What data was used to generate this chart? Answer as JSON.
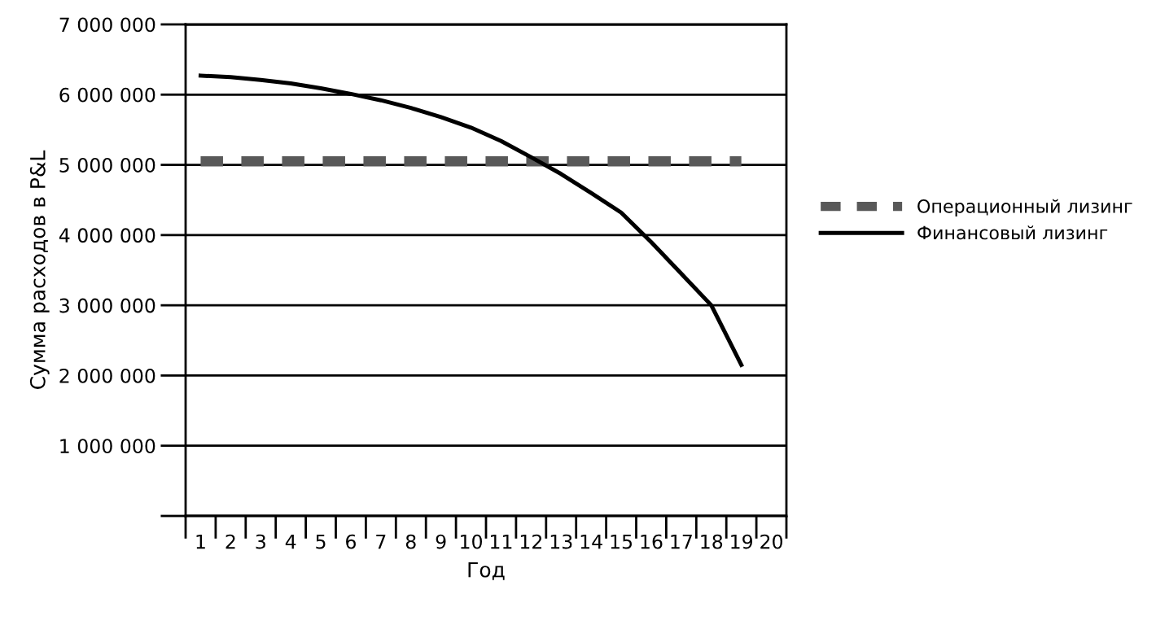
{
  "chart_data": {
    "type": "line",
    "xlabel": "Год",
    "ylabel": "Сумма расходов в P&L",
    "categories": [
      "1",
      "2",
      "3",
      "4",
      "5",
      "6",
      "7",
      "8",
      "9",
      "10",
      "11",
      "12",
      "13",
      "14",
      "15",
      "16",
      "17",
      "18",
      "19",
      "20"
    ],
    "series": [
      {
        "name": "Операционный лизинг",
        "color": "#595959",
        "line_style": "dashed",
        "values": [
          5050000,
          5050000,
          5050000,
          5050000,
          5050000,
          5050000,
          5050000,
          5050000,
          5050000,
          5050000,
          5050000,
          5050000,
          5050000,
          5050000,
          5050000,
          5050000,
          5050000,
          5050000,
          5050000,
          null
        ]
      },
      {
        "name": "Финансовый лизинг",
        "color": "#000000",
        "line_style": "solid",
        "values": [
          6270000,
          6250000,
          6210000,
          6160000,
          6090000,
          6010000,
          5920000,
          5810000,
          5680000,
          5530000,
          5340000,
          5110000,
          4870000,
          4600000,
          4320000,
          3900000,
          3450000,
          3000000,
          2150000,
          null
        ]
      }
    ],
    "ylim": [
      0,
      7000000
    ],
    "yticks": [
      {
        "value": 0,
        "label": null
      },
      {
        "value": 1000000,
        "label": "1 000 000"
      },
      {
        "value": 2000000,
        "label": "2 000 000"
      },
      {
        "value": 3000000,
        "label": "3 000 000"
      },
      {
        "value": 4000000,
        "label": "4 000 000"
      },
      {
        "value": 5000000,
        "label": "5 000 000"
      },
      {
        "value": 6000000,
        "label": "6 000 000"
      },
      {
        "value": 7000000,
        "label": "7 000 000"
      }
    ],
    "grid": "y",
    "legend": "right",
    "marker": "none"
  }
}
